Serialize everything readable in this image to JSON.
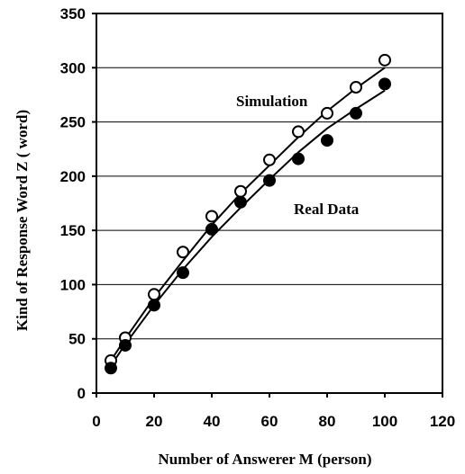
{
  "chart_data": {
    "type": "scatter",
    "xlabel": "Number of Answerer  M (person)",
    "ylabel": "Kind of Response Word Z ( word)",
    "xlim": [
      0,
      120
    ],
    "ylim": [
      0,
      350
    ],
    "xticks": [
      0,
      20,
      40,
      60,
      80,
      100,
      120
    ],
    "yticks": [
      0,
      50,
      100,
      150,
      200,
      250,
      300,
      350
    ],
    "grid": "horizontal",
    "series": [
      {
        "name": "Simulation",
        "marker": "open-circle",
        "x": [
          5,
          10,
          20,
          30,
          40,
          50,
          60,
          70,
          80,
          90,
          100
        ],
        "y": [
          30,
          51,
          91,
          130,
          163,
          186,
          215,
          241,
          258,
          282,
          307
        ],
        "fit": [
          [
            5,
            30
          ],
          [
            10,
            50
          ],
          [
            20,
            88
          ],
          [
            30,
            122
          ],
          [
            40,
            155
          ],
          [
            50,
            184
          ],
          [
            60,
            210
          ],
          [
            70,
            236
          ],
          [
            80,
            260
          ],
          [
            90,
            281
          ],
          [
            100,
            300
          ]
        ]
      },
      {
        "name": "Real Data",
        "marker": "filled-circle",
        "x": [
          5,
          10,
          20,
          30,
          40,
          50,
          60,
          70,
          80,
          90,
          100
        ],
        "y": [
          23,
          44,
          81,
          111,
          151,
          176,
          196,
          216,
          233,
          258,
          285
        ],
        "fit": [
          [
            5,
            25
          ],
          [
            10,
            45
          ],
          [
            20,
            81
          ],
          [
            30,
            114
          ],
          [
            40,
            144
          ],
          [
            50,
            171
          ],
          [
            60,
            197
          ],
          [
            70,
            222
          ],
          [
            80,
            244
          ],
          [
            90,
            262
          ],
          [
            100,
            279
          ]
        ]
      }
    ]
  }
}
